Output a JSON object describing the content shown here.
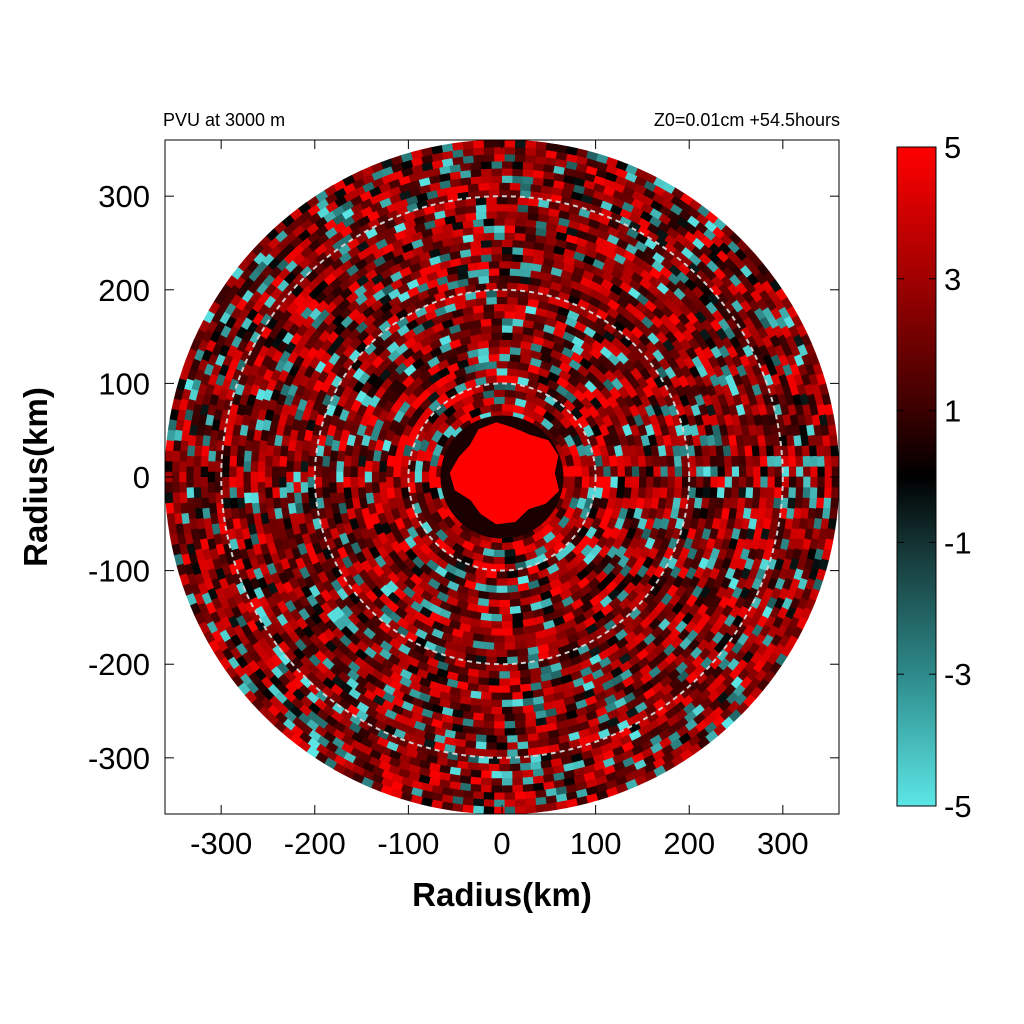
{
  "chart_data": {
    "type": "heatmap",
    "title_left": "PVU at  3000 m",
    "title_right": "Z0=0.01cm  +54.5hours",
    "xlabel": "Radius(km)",
    "ylabel": "Radius(km)",
    "xlim": [
      -360,
      360
    ],
    "ylim": [
      -360,
      360
    ],
    "xticks": [
      "-300",
      "-200",
      "-100",
      "0",
      "100",
      "200",
      "300"
    ],
    "yticks": [
      "300",
      "200",
      "100",
      "0",
      "-100",
      "-200",
      "-300"
    ],
    "domain_radius_km": 360,
    "reference_circles_km": [
      100,
      200,
      300
    ],
    "eye_core": {
      "description_value_pvu": 5,
      "radius_km": 55
    },
    "colorbar": {
      "range": [
        -5,
        5
      ],
      "tick_labels": [
        "5",
        "3",
        "1",
        "-1",
        "-3",
        "-5"
      ],
      "stops": [
        {
          "value": -5,
          "color": "#5ce6e6"
        },
        {
          "value": -3,
          "color": "#2e8a8a"
        },
        {
          "value": -1,
          "color": "#143232"
        },
        {
          "value": 0,
          "color": "#000000"
        },
        {
          "value": 1,
          "color": "#3a0000"
        },
        {
          "value": 3,
          "color": "#a00000"
        },
        {
          "value": 5,
          "color": "#ff0000"
        }
      ]
    },
    "colors": {
      "positive": "#ff0000",
      "negative": "#5ce6e6",
      "circle": "#d0d0d0"
    }
  }
}
